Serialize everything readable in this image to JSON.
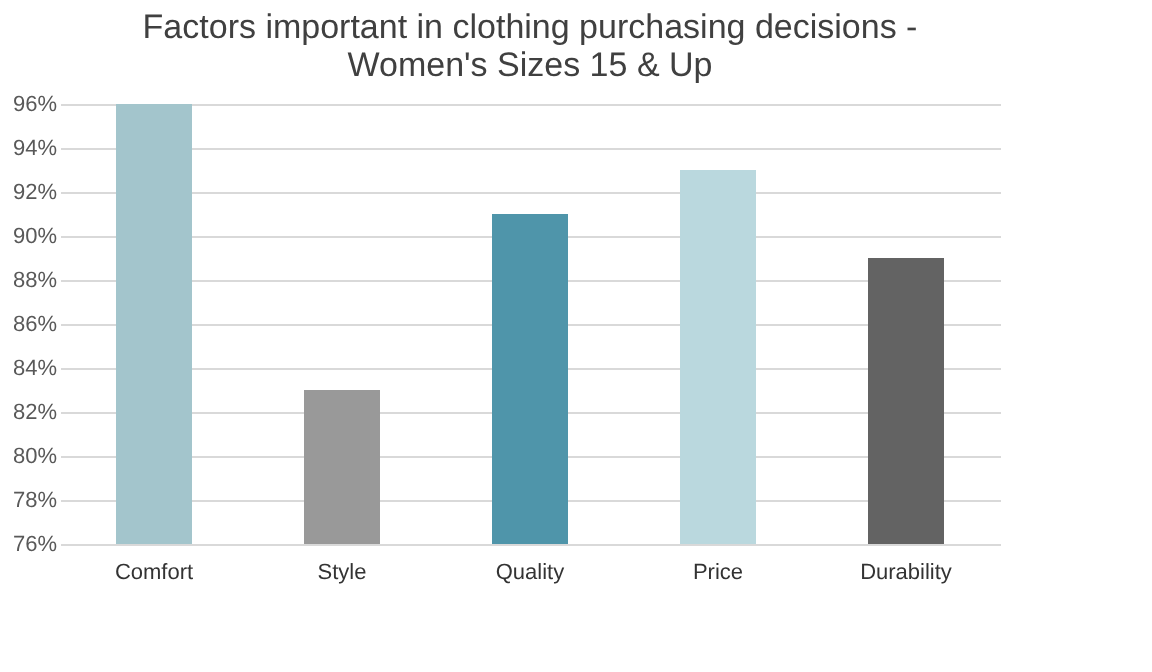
{
  "chart_data": {
    "type": "bar",
    "title": "Factors important in clothing purchasing decisions - Women's Sizes 15 & Up",
    "categories": [
      "Comfort",
      "Style",
      "Quality",
      "Price",
      "Durability"
    ],
    "values": [
      96,
      83,
      91,
      93,
      89
    ],
    "colors": [
      "#a3c5cc",
      "#999999",
      "#4f95aa",
      "#bad8de",
      "#636363"
    ],
    "ylim": [
      76,
      96
    ],
    "yticks": [
      {
        "value": 76,
        "label": "76%"
      },
      {
        "value": 78,
        "label": "78%"
      },
      {
        "value": 80,
        "label": "80%"
      },
      {
        "value": 82,
        "label": "82%"
      },
      {
        "value": 84,
        "label": "84%"
      },
      {
        "value": 86,
        "label": "86%"
      },
      {
        "value": 88,
        "label": "88%"
      },
      {
        "value": 90,
        "label": "90%"
      },
      {
        "value": 92,
        "label": "92%"
      },
      {
        "value": 94,
        "label": "94%"
      },
      {
        "value": 96,
        "label": "96%"
      }
    ],
    "grid": "y"
  }
}
